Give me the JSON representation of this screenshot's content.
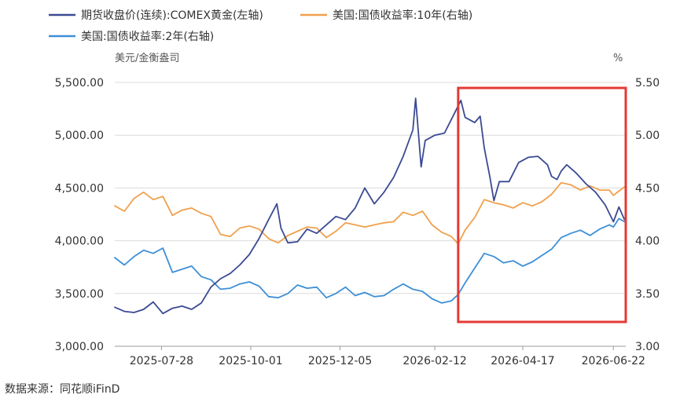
{
  "source": "数据来源：同花顺iFinD",
  "chart_data": {
    "type": "line",
    "legend": [
      {
        "label": "期货收盘价(连续):COMEX黄金(左轴)",
        "color": "#3b4a93"
      },
      {
        "label": "美国:国债收益率:10年(右轴)",
        "color": "#f0a04b"
      },
      {
        "label": "美国:国债收益率:2年(右轴)",
        "color": "#3d8fd6"
      }
    ],
    "left_axis": {
      "unit": "美元/金衡盎司",
      "ylim": [
        3000,
        5500
      ],
      "ticks": [
        "5,500.00",
        "5,000.00",
        "4,500.00",
        "4,000.00",
        "3,500.00",
        "3,000.00"
      ]
    },
    "right_axis": {
      "unit": "%",
      "ylim": [
        3.0,
        5.5
      ],
      "ticks": [
        "5.50",
        "5.00",
        "4.50",
        "4.00",
        "3.50",
        "3.00"
      ]
    },
    "x_ticks": [
      "2025-07-28",
      "2025-10-01",
      "2025-12-05",
      "2026-02-12",
      "2026-04-17",
      "2026-06-22"
    ],
    "x_range": [
      "2025-06-24",
      "2026-07-01"
    ],
    "grid": "horizontal",
    "legend_position": "top-left",
    "highlight": {
      "from": "2026-03-01",
      "to": "2026-07-01",
      "color": "#e53935"
    },
    "series": [
      {
        "name": "期货收盘价(连续):COMEX黄金(左轴)",
        "axis": "left",
        "color": "#3b4a93",
        "points": [
          [
            "2025-06-24",
            3370
          ],
          [
            "2025-07-01",
            3330
          ],
          [
            "2025-07-08",
            3320
          ],
          [
            "2025-07-15",
            3350
          ],
          [
            "2025-07-22",
            3420
          ],
          [
            "2025-07-29",
            3310
          ],
          [
            "2025-08-05",
            3360
          ],
          [
            "2025-08-12",
            3380
          ],
          [
            "2025-08-19",
            3350
          ],
          [
            "2025-08-26",
            3410
          ],
          [
            "2025-09-02",
            3560
          ],
          [
            "2025-09-09",
            3640
          ],
          [
            "2025-09-16",
            3690
          ],
          [
            "2025-09-23",
            3770
          ],
          [
            "2025-09-30",
            3870
          ],
          [
            "2025-10-07",
            4020
          ],
          [
            "2025-10-14",
            4200
          ],
          [
            "2025-10-20",
            4350
          ],
          [
            "2025-10-23",
            4120
          ],
          [
            "2025-10-28",
            3980
          ],
          [
            "2025-11-04",
            3990
          ],
          [
            "2025-11-11",
            4110
          ],
          [
            "2025-11-18",
            4070
          ],
          [
            "2025-11-25",
            4150
          ],
          [
            "2025-12-02",
            4230
          ],
          [
            "2025-12-09",
            4200
          ],
          [
            "2025-12-16",
            4310
          ],
          [
            "2025-12-23",
            4500
          ],
          [
            "2025-12-30",
            4350
          ],
          [
            "2026-01-06",
            4460
          ],
          [
            "2026-01-13",
            4600
          ],
          [
            "2026-01-20",
            4800
          ],
          [
            "2026-01-27",
            5050
          ],
          [
            "2026-01-29",
            5350
          ],
          [
            "2026-02-02",
            4700
          ],
          [
            "2026-02-05",
            4950
          ],
          [
            "2026-02-12",
            5000
          ],
          [
            "2026-02-19",
            5020
          ],
          [
            "2026-02-26",
            5200
          ],
          [
            "2026-03-03",
            5330
          ],
          [
            "2026-03-06",
            5170
          ],
          [
            "2026-03-13",
            5120
          ],
          [
            "2026-03-17",
            5180
          ],
          [
            "2026-03-20",
            4880
          ],
          [
            "2026-03-24",
            4610
          ],
          [
            "2026-03-27",
            4380
          ],
          [
            "2026-03-31",
            4560
          ],
          [
            "2026-04-07",
            4560
          ],
          [
            "2026-04-14",
            4740
          ],
          [
            "2026-04-21",
            4790
          ],
          [
            "2026-04-28",
            4800
          ],
          [
            "2026-05-05",
            4720
          ],
          [
            "2026-05-08",
            4610
          ],
          [
            "2026-05-12",
            4580
          ],
          [
            "2026-05-15",
            4660
          ],
          [
            "2026-05-19",
            4720
          ],
          [
            "2026-05-26",
            4640
          ],
          [
            "2026-06-02",
            4540
          ],
          [
            "2026-06-09",
            4460
          ],
          [
            "2026-06-16",
            4340
          ],
          [
            "2026-06-22",
            4180
          ],
          [
            "2026-06-26",
            4320
          ],
          [
            "2026-06-30",
            4200
          ]
        ]
      },
      {
        "name": "美国:国债收益率:10年(右轴)",
        "axis": "right",
        "color": "#f0a04b",
        "points": [
          [
            "2025-06-24",
            4.33
          ],
          [
            "2025-07-01",
            4.28
          ],
          [
            "2025-07-08",
            4.4
          ],
          [
            "2025-07-15",
            4.46
          ],
          [
            "2025-07-22",
            4.39
          ],
          [
            "2025-07-29",
            4.42
          ],
          [
            "2025-08-05",
            4.24
          ],
          [
            "2025-08-12",
            4.29
          ],
          [
            "2025-08-19",
            4.31
          ],
          [
            "2025-08-26",
            4.26
          ],
          [
            "2025-09-02",
            4.23
          ],
          [
            "2025-09-09",
            4.06
          ],
          [
            "2025-09-16",
            4.04
          ],
          [
            "2025-09-23",
            4.12
          ],
          [
            "2025-09-30",
            4.14
          ],
          [
            "2025-10-07",
            4.11
          ],
          [
            "2025-10-14",
            4.02
          ],
          [
            "2025-10-21",
            3.98
          ],
          [
            "2025-10-28",
            4.05
          ],
          [
            "2025-11-04",
            4.09
          ],
          [
            "2025-11-11",
            4.13
          ],
          [
            "2025-11-18",
            4.12
          ],
          [
            "2025-11-25",
            4.03
          ],
          [
            "2025-12-02",
            4.09
          ],
          [
            "2025-12-09",
            4.17
          ],
          [
            "2025-12-16",
            4.15
          ],
          [
            "2025-12-23",
            4.13
          ],
          [
            "2025-12-30",
            4.15
          ],
          [
            "2026-01-06",
            4.17
          ],
          [
            "2026-01-13",
            4.18
          ],
          [
            "2026-01-20",
            4.27
          ],
          [
            "2026-01-27",
            4.24
          ],
          [
            "2026-02-03",
            4.28
          ],
          [
            "2026-02-10",
            4.15
          ],
          [
            "2026-02-17",
            4.08
          ],
          [
            "2026-02-24",
            4.04
          ],
          [
            "2026-03-01",
            3.97
          ],
          [
            "2026-03-06",
            4.1
          ],
          [
            "2026-03-13",
            4.22
          ],
          [
            "2026-03-20",
            4.39
          ],
          [
            "2026-03-27",
            4.36
          ],
          [
            "2026-04-03",
            4.34
          ],
          [
            "2026-04-10",
            4.31
          ],
          [
            "2026-04-17",
            4.36
          ],
          [
            "2026-04-24",
            4.33
          ],
          [
            "2026-05-01",
            4.37
          ],
          [
            "2026-05-08",
            4.44
          ],
          [
            "2026-05-15",
            4.55
          ],
          [
            "2026-05-22",
            4.53
          ],
          [
            "2026-05-29",
            4.48
          ],
          [
            "2026-06-05",
            4.52
          ],
          [
            "2026-06-12",
            4.48
          ],
          [
            "2026-06-19",
            4.48
          ],
          [
            "2026-06-22",
            4.43
          ],
          [
            "2026-06-26",
            4.47
          ],
          [
            "2026-06-30",
            4.51
          ]
        ]
      },
      {
        "name": "美国:国债收益率:2年(右轴)",
        "axis": "right",
        "color": "#3d8fd6",
        "points": [
          [
            "2025-06-24",
            3.84
          ],
          [
            "2025-07-01",
            3.77
          ],
          [
            "2025-07-08",
            3.85
          ],
          [
            "2025-07-15",
            3.91
          ],
          [
            "2025-07-22",
            3.88
          ],
          [
            "2025-07-29",
            3.93
          ],
          [
            "2025-08-05",
            3.7
          ],
          [
            "2025-08-12",
            3.73
          ],
          [
            "2025-08-19",
            3.76
          ],
          [
            "2025-08-26",
            3.66
          ],
          [
            "2025-09-02",
            3.63
          ],
          [
            "2025-09-09",
            3.54
          ],
          [
            "2025-09-16",
            3.55
          ],
          [
            "2025-09-23",
            3.59
          ],
          [
            "2025-09-30",
            3.61
          ],
          [
            "2025-10-07",
            3.57
          ],
          [
            "2025-10-14",
            3.47
          ],
          [
            "2025-10-21",
            3.46
          ],
          [
            "2025-10-28",
            3.5
          ],
          [
            "2025-11-04",
            3.58
          ],
          [
            "2025-11-11",
            3.55
          ],
          [
            "2025-11-18",
            3.56
          ],
          [
            "2025-11-25",
            3.46
          ],
          [
            "2025-12-02",
            3.5
          ],
          [
            "2025-12-09",
            3.56
          ],
          [
            "2025-12-16",
            3.48
          ],
          [
            "2025-12-23",
            3.51
          ],
          [
            "2025-12-30",
            3.47
          ],
          [
            "2026-01-06",
            3.48
          ],
          [
            "2026-01-13",
            3.54
          ],
          [
            "2026-01-20",
            3.59
          ],
          [
            "2026-01-27",
            3.54
          ],
          [
            "2026-02-03",
            3.52
          ],
          [
            "2026-02-10",
            3.45
          ],
          [
            "2026-02-17",
            3.41
          ],
          [
            "2026-02-24",
            3.43
          ],
          [
            "2026-03-01",
            3.49
          ],
          [
            "2026-03-06",
            3.6
          ],
          [
            "2026-03-13",
            3.74
          ],
          [
            "2026-03-20",
            3.88
          ],
          [
            "2026-03-27",
            3.85
          ],
          [
            "2026-04-03",
            3.79
          ],
          [
            "2026-04-10",
            3.81
          ],
          [
            "2026-04-17",
            3.76
          ],
          [
            "2026-04-24",
            3.8
          ],
          [
            "2026-05-01",
            3.86
          ],
          [
            "2026-05-08",
            3.92
          ],
          [
            "2026-05-15",
            4.03
          ],
          [
            "2026-05-22",
            4.07
          ],
          [
            "2026-05-29",
            4.1
          ],
          [
            "2026-06-05",
            4.05
          ],
          [
            "2026-06-12",
            4.11
          ],
          [
            "2026-06-19",
            4.15
          ],
          [
            "2026-06-22",
            4.13
          ],
          [
            "2026-06-26",
            4.21
          ],
          [
            "2026-06-30",
            4.18
          ]
        ]
      }
    ]
  }
}
